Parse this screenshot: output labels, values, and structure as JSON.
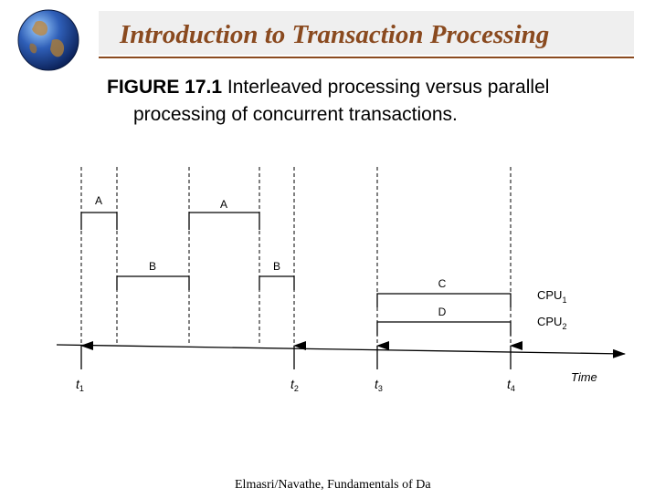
{
  "slide": {
    "title": "Introduction to Transaction Processing",
    "caption_label": "FIGURE 17.1",
    "caption_line1": "Interleaved processing versus parallel",
    "caption_line2": "processing of concurrent transactions.",
    "footer": "Elmasri/Navathe, Fundamentals of Da"
  },
  "diagram": {
    "segments": [
      {
        "label": "A"
      },
      {
        "label": "B"
      },
      {
        "label": "A"
      },
      {
        "label": "B"
      },
      {
        "label": "C"
      },
      {
        "label": "D"
      }
    ],
    "cpu_labels": [
      {
        "base": "CPU",
        "sub": "1"
      },
      {
        "base": "CPU",
        "sub": "2"
      }
    ],
    "time_marks": [
      {
        "base": "t",
        "sub": "1"
      },
      {
        "base": "t",
        "sub": "2"
      },
      {
        "base": "t",
        "sub": "3"
      },
      {
        "base": "t",
        "sub": "4"
      }
    ],
    "axis_label": "Time"
  },
  "colors": {
    "title": "#8a4a1f",
    "title_bar": "#efefef",
    "ink": "#000000"
  }
}
